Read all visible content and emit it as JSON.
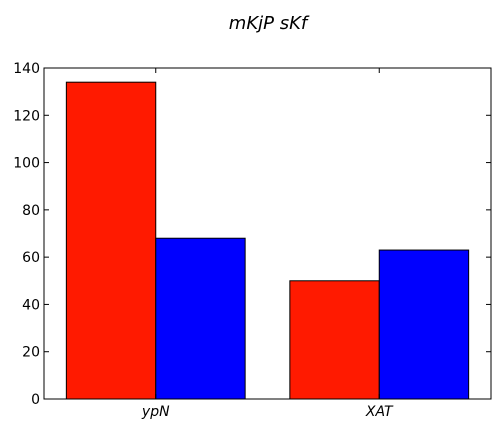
{
  "chart_data": {
    "type": "bar",
    "title": "mKjP  sKf",
    "xlabel": "",
    "ylabel": "",
    "categories": [
      "ypN",
      "XAT"
    ],
    "series": [
      {
        "color": "#ff1a00",
        "values": [
          134,
          50
        ]
      },
      {
        "color": "#0000ff",
        "values": [
          68,
          63
        ]
      }
    ],
    "ylim": [
      0,
      140
    ],
    "yticks": [
      0,
      20,
      40,
      60,
      80,
      100,
      120,
      140
    ],
    "grid": false,
    "legend": "none"
  }
}
